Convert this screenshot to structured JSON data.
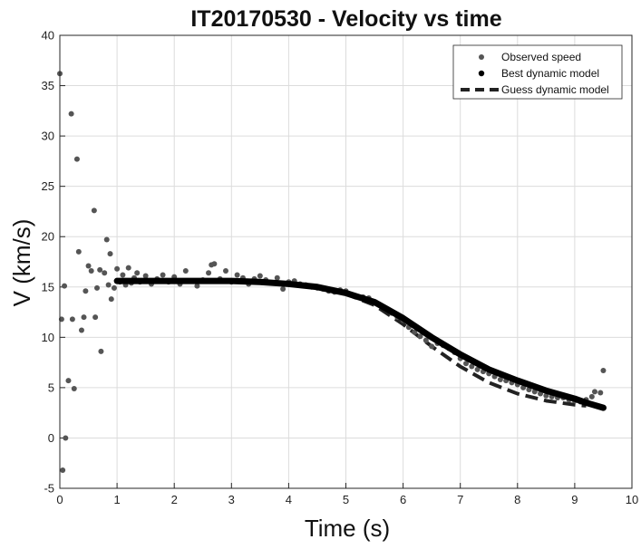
{
  "chart_data": {
    "type": "scatter",
    "title": "IT20170530 - Velocity vs time",
    "xlabel": "Time (s)",
    "ylabel": "V (km/s)",
    "xlim": [
      0,
      10
    ],
    "ylim": [
      -5,
      40
    ],
    "xticks": [
      0,
      1,
      2,
      3,
      4,
      5,
      6,
      7,
      8,
      9,
      10
    ],
    "yticks": [
      -5,
      0,
      5,
      10,
      15,
      20,
      25,
      30,
      35,
      40
    ],
    "grid": true,
    "legend_position": "top-right",
    "series": [
      {
        "name": "Observed speed",
        "style": "markers",
        "color": "#555555",
        "x": [
          0.0,
          0.03,
          0.05,
          0.08,
          0.1,
          0.15,
          0.2,
          0.22,
          0.25,
          0.3,
          0.33,
          0.38,
          0.42,
          0.45,
          0.5,
          0.55,
          0.6,
          0.62,
          0.65,
          0.7,
          0.72,
          0.78,
          0.82,
          0.85,
          0.88,
          0.9,
          0.95,
          1.0,
          1.05,
          1.1,
          1.15,
          1.2,
          1.25,
          1.3,
          1.35,
          1.4,
          1.5,
          1.6,
          1.7,
          1.8,
          1.9,
          2.0,
          2.1,
          2.2,
          2.3,
          2.4,
          2.5,
          2.6,
          2.65,
          2.7,
          2.8,
          2.9,
          3.0,
          3.1,
          3.2,
          3.3,
          3.4,
          3.5,
          3.6,
          3.7,
          3.8,
          3.9,
          4.0,
          4.1,
          4.2,
          4.3,
          4.4,
          4.5,
          4.6,
          4.7,
          4.8,
          4.9,
          5.0,
          5.1,
          5.2,
          5.3,
          5.4,
          5.5,
          5.6,
          5.7,
          5.8,
          5.9,
          6.0,
          6.1,
          6.2,
          6.3,
          6.4,
          6.5,
          6.6,
          6.7,
          6.8,
          6.9,
          7.0,
          7.1,
          7.2,
          7.3,
          7.4,
          7.5,
          7.6,
          7.7,
          7.8,
          7.9,
          8.0,
          8.1,
          8.2,
          8.3,
          8.4,
          8.5,
          8.6,
          8.7,
          8.8,
          8.9,
          9.0,
          9.1,
          9.2,
          9.3,
          9.35,
          9.4,
          9.45,
          9.5
        ],
        "y": [
          36.2,
          11.8,
          -3.2,
          15.1,
          0.0,
          5.7,
          32.2,
          11.8,
          4.9,
          27.7,
          18.5,
          10.7,
          12.0,
          14.6,
          17.1,
          16.6,
          22.6,
          12.0,
          14.9,
          16.7,
          8.6,
          16.4,
          19.7,
          15.2,
          18.3,
          13.8,
          14.9,
          16.8,
          15.5,
          16.2,
          15.2,
          16.9,
          15.4,
          15.9,
          16.4,
          15.5,
          16.1,
          15.3,
          15.8,
          16.2,
          15.5,
          16.0,
          15.3,
          16.6,
          15.6,
          15.1,
          15.7,
          16.4,
          17.2,
          17.3,
          15.8,
          16.6,
          15.5,
          16.2,
          15.9,
          15.3,
          15.8,
          16.1,
          15.7,
          15.4,
          15.9,
          14.8,
          15.5,
          15.6,
          15.3,
          15.2,
          15.0,
          14.9,
          14.8,
          14.6,
          14.5,
          14.7,
          14.6,
          14.2,
          14.0,
          14.0,
          13.9,
          13.5,
          13.2,
          12.8,
          12.4,
          12.0,
          11.7,
          11.0,
          10.5,
          10.1,
          9.7,
          9.1,
          9.4,
          9.2,
          8.9,
          8.5,
          7.9,
          7.4,
          7.1,
          6.8,
          6.6,
          6.4,
          6.1,
          5.8,
          5.7,
          5.5,
          5.3,
          5.0,
          4.8,
          4.6,
          4.4,
          4.2,
          4.1,
          4.0,
          4.0,
          3.8,
          3.7,
          3.6,
          3.8,
          4.1,
          4.6,
          3.2,
          4.5,
          6.7
        ]
      },
      {
        "name": "Best dynamic model",
        "style": "thick-line",
        "color": "#000000",
        "x": [
          1.0,
          1.5,
          2.0,
          2.5,
          3.0,
          3.5,
          4.0,
          4.5,
          5.0,
          5.5,
          6.0,
          6.5,
          7.0,
          7.5,
          8.0,
          8.5,
          9.0,
          9.2,
          9.5
        ],
        "y": [
          15.6,
          15.6,
          15.6,
          15.6,
          15.6,
          15.5,
          15.3,
          15.0,
          14.4,
          13.5,
          11.9,
          10.0,
          8.3,
          6.8,
          5.7,
          4.7,
          3.9,
          3.5,
          3.0
        ]
      },
      {
        "name": "Guess dynamic model",
        "style": "dashed-line",
        "color": "#222222",
        "x": [
          1.0,
          1.5,
          2.0,
          2.5,
          3.0,
          3.5,
          4.0,
          4.5,
          5.0,
          5.5,
          6.0,
          6.5,
          7.0,
          7.5,
          8.0,
          8.5,
          9.0,
          9.2
        ],
        "y": [
          15.6,
          15.6,
          15.6,
          15.6,
          15.6,
          15.5,
          15.3,
          15.0,
          14.3,
          13.2,
          11.3,
          9.1,
          7.1,
          5.5,
          4.4,
          3.7,
          3.3,
          3.2
        ]
      }
    ]
  }
}
